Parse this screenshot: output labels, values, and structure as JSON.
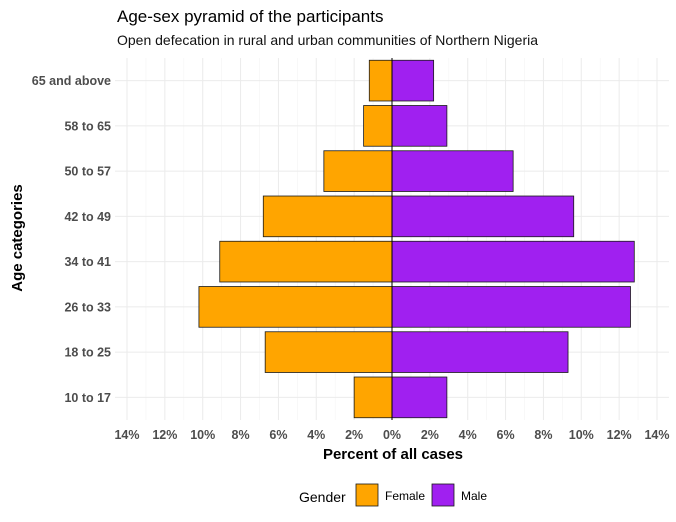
{
  "chart_data": {
    "type": "bar",
    "orientation": "horizontal",
    "title": "Age-sex pyramid of the participants",
    "subtitle": "Open defecation in rural and urban communities of Northern Nigeria",
    "xlabel": "Percent of all cases",
    "ylabel": "Age categories",
    "categories": [
      "10 to 17",
      "18 to 25",
      "26 to 33",
      "34 to 41",
      "42 to 49",
      "50 to 57",
      "58 to 65",
      "65 and above"
    ],
    "series": [
      {
        "name": "Female",
        "color": "#FFA500",
        "values": [
          2.0,
          6.7,
          10.2,
          9.1,
          6.8,
          3.6,
          1.5,
          1.2
        ]
      },
      {
        "name": "Male",
        "color": "#A020F0",
        "values": [
          2.9,
          9.3,
          12.6,
          12.8,
          9.6,
          6.4,
          2.9,
          2.2
        ]
      }
    ],
    "xlim": [
      -14,
      14
    ],
    "xticks": [
      -14,
      -12,
      -10,
      -8,
      -6,
      -4,
      -2,
      0,
      2,
      4,
      6,
      8,
      10,
      12,
      14
    ],
    "xtick_labels": [
      "14%",
      "12%",
      "10%",
      "8%",
      "6%",
      "4%",
      "2%",
      "0%",
      "2%",
      "4%",
      "6%",
      "8%",
      "10%",
      "12%",
      "14%"
    ],
    "legend": {
      "title": "Gender",
      "position": "bottom",
      "entries": [
        "Female",
        "Male"
      ]
    },
    "grid": true
  }
}
